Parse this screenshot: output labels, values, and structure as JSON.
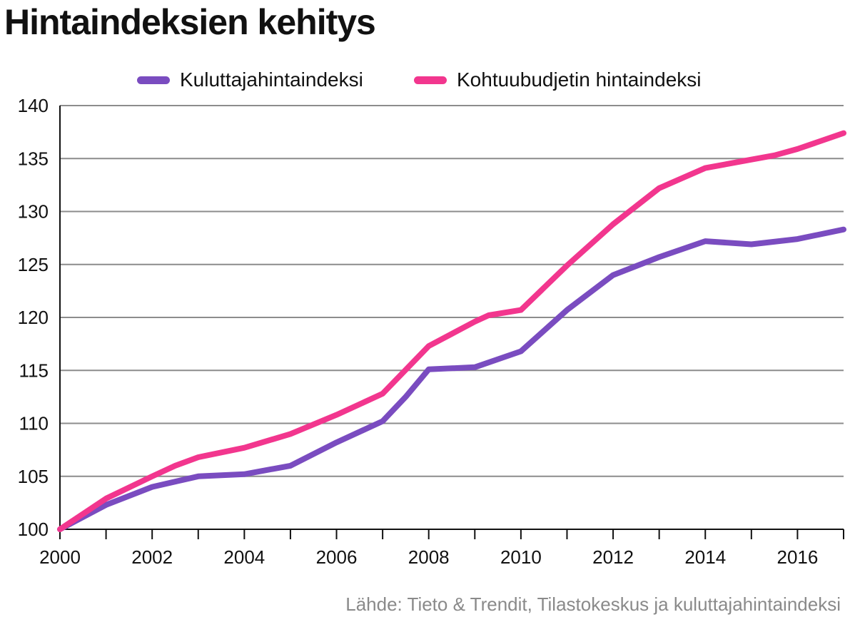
{
  "title": "Hintaindeksien kehitys",
  "source": "Lähde: Tieto & Trendit, Tilastokeskus ja kuluttajahintaindeksi",
  "colors": {
    "kuluttaja": "#7a4cc0",
    "kohtuu": "#f2368e",
    "grid": "#8c8c8c",
    "axis": "#111111"
  },
  "chart_data": {
    "type": "line",
    "title": "Hintaindeksien kehitys",
    "xlabel": "",
    "ylabel": "",
    "xlim": [
      2000,
      2017
    ],
    "ylim": [
      100,
      140
    ],
    "yticks": [
      100,
      105,
      110,
      115,
      120,
      125,
      130,
      135,
      140
    ],
    "xticks": [
      2000,
      2002,
      2004,
      2006,
      2008,
      2010,
      2012,
      2014,
      2016
    ],
    "grid": true,
    "legend_position": "top",
    "series": [
      {
        "name": "Kuluttajahintaindeksi",
        "color": "#7a4cc0",
        "points": [
          [
            2000,
            100
          ],
          [
            2001,
            102.3
          ],
          [
            2002,
            104.0
          ],
          [
            2003,
            105.0
          ],
          [
            2004,
            105.2
          ],
          [
            2005,
            106.0
          ],
          [
            2006,
            108.2
          ],
          [
            2007,
            110.2
          ],
          [
            2007.5,
            112.5
          ],
          [
            2008,
            115.1
          ],
          [
            2009,
            115.3
          ],
          [
            2010,
            116.8
          ],
          [
            2011,
            120.7
          ],
          [
            2012,
            124.0
          ],
          [
            2013,
            125.7
          ],
          [
            2014,
            127.2
          ],
          [
            2015,
            126.9
          ],
          [
            2016,
            127.4
          ],
          [
            2017,
            128.3
          ]
        ]
      },
      {
        "name": "Kohtuubudjetin hintaindeksi",
        "color": "#f2368e",
        "points": [
          [
            2000,
            100
          ],
          [
            2001,
            102.9
          ],
          [
            2002,
            105.0
          ],
          [
            2002.5,
            106.0
          ],
          [
            2003,
            106.8
          ],
          [
            2004,
            107.7
          ],
          [
            2005,
            109.0
          ],
          [
            2006,
            110.8
          ],
          [
            2007,
            112.8
          ],
          [
            2008,
            117.3
          ],
          [
            2009,
            119.6
          ],
          [
            2009.3,
            120.2
          ],
          [
            2010,
            120.7
          ],
          [
            2010.5,
            122.8
          ],
          [
            2011,
            124.9
          ],
          [
            2012,
            128.8
          ],
          [
            2013,
            132.2
          ],
          [
            2014,
            134.1
          ],
          [
            2015,
            134.9
          ],
          [
            2015.5,
            135.3
          ],
          [
            2016,
            135.9
          ],
          [
            2017,
            137.4
          ]
        ]
      }
    ]
  }
}
